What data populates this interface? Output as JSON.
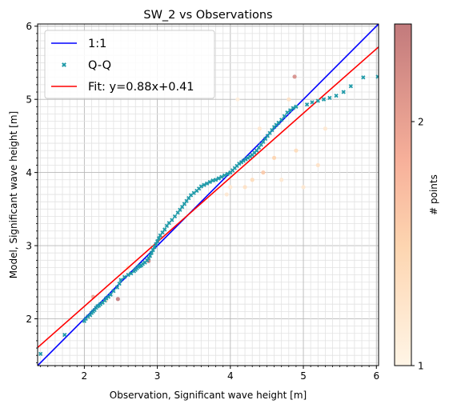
{
  "chart_data": {
    "type": "scatter",
    "title": "SW_2 vs Observations",
    "xlabel": "Observation, Significant wave height [m]",
    "ylabel": "Model, Significant wave height [m]",
    "xlim": [
      1.36,
      6.03
    ],
    "ylim": [
      1.36,
      6.03
    ],
    "x_ticks": [
      2,
      3,
      4,
      5,
      6
    ],
    "y_ticks": [
      2,
      3,
      4,
      5,
      6
    ],
    "x_tick_labels": [
      "2",
      "3",
      "4",
      "5",
      "6"
    ],
    "y_tick_labels": [
      "2",
      "3",
      "4",
      "5",
      "6"
    ],
    "grid": true,
    "legend_position": "top-left",
    "legend": {
      "one_to_one": "1:1",
      "qq": "Q-Q",
      "fit": "Fit: y=0.88x+0.41"
    },
    "colors": {
      "one_to_one": "#0000ff",
      "qq": "#1f9aa8",
      "fit": "#ff0000",
      "density_low": "#fff5e6",
      "density_high": "#c27a7c"
    },
    "fit_line": {
      "slope": 0.88,
      "intercept": 0.41
    },
    "colorbar": {
      "label": "# points",
      "ticks": [
        1,
        2
      ],
      "tick_labels": [
        "1",
        "2"
      ],
      "range": [
        1,
        2.4
      ]
    },
    "qq_points": [
      [
        1.4,
        1.52
      ],
      [
        1.73,
        1.78
      ],
      [
        2.0,
        1.97
      ],
      [
        2.02,
        2.0
      ],
      [
        2.05,
        2.03
      ],
      [
        2.08,
        2.05
      ],
      [
        2.1,
        2.08
      ],
      [
        2.12,
        2.1
      ],
      [
        2.14,
        2.12
      ],
      [
        2.16,
        2.15
      ],
      [
        2.18,
        2.17
      ],
      [
        2.2,
        2.18
      ],
      [
        2.22,
        2.2
      ],
      [
        2.25,
        2.22
      ],
      [
        2.28,
        2.25
      ],
      [
        2.3,
        2.28
      ],
      [
        2.33,
        2.3
      ],
      [
        2.36,
        2.33
      ],
      [
        2.4,
        2.38
      ],
      [
        2.45,
        2.43
      ],
      [
        2.48,
        2.48
      ],
      [
        2.5,
        2.53
      ],
      [
        2.55,
        2.57
      ],
      [
        2.6,
        2.6
      ],
      [
        2.64,
        2.62
      ],
      [
        2.68,
        2.65
      ],
      [
        2.7,
        2.67
      ],
      [
        2.72,
        2.69
      ],
      [
        2.74,
        2.71
      ],
      [
        2.76,
        2.72
      ],
      [
        2.78,
        2.73
      ],
      [
        2.8,
        2.75
      ],
      [
        2.83,
        2.77
      ],
      [
        2.86,
        2.8
      ],
      [
        2.88,
        2.83
      ],
      [
        2.9,
        2.86
      ],
      [
        2.92,
        2.9
      ],
      [
        2.94,
        2.94
      ],
      [
        2.96,
        2.98
      ],
      [
        2.98,
        3.02
      ],
      [
        3.0,
        3.06
      ],
      [
        3.02,
        3.1
      ],
      [
        3.04,
        3.14
      ],
      [
        3.07,
        3.18
      ],
      [
        3.1,
        3.22
      ],
      [
        3.13,
        3.27
      ],
      [
        3.16,
        3.31
      ],
      [
        3.2,
        3.35
      ],
      [
        3.24,
        3.4
      ],
      [
        3.28,
        3.45
      ],
      [
        3.31,
        3.49
      ],
      [
        3.34,
        3.53
      ],
      [
        3.37,
        3.57
      ],
      [
        3.4,
        3.61
      ],
      [
        3.43,
        3.65
      ],
      [
        3.46,
        3.69
      ],
      [
        3.5,
        3.72
      ],
      [
        3.54,
        3.75
      ],
      [
        3.57,
        3.78
      ],
      [
        3.6,
        3.81
      ],
      [
        3.64,
        3.83
      ],
      [
        3.68,
        3.85
      ],
      [
        3.72,
        3.87
      ],
      [
        3.76,
        3.89
      ],
      [
        3.8,
        3.9
      ],
      [
        3.84,
        3.92
      ],
      [
        3.88,
        3.94
      ],
      [
        3.92,
        3.96
      ],
      [
        3.96,
        3.98
      ],
      [
        4.0,
        4.0
      ],
      [
        4.03,
        4.03
      ],
      [
        4.06,
        4.06
      ],
      [
        4.09,
        4.09
      ],
      [
        4.12,
        4.12
      ],
      [
        4.15,
        4.14
      ],
      [
        4.18,
        4.16
      ],
      [
        4.21,
        4.18
      ],
      [
        4.24,
        4.2
      ],
      [
        4.27,
        4.22
      ],
      [
        4.3,
        4.24
      ],
      [
        4.33,
        4.27
      ],
      [
        4.36,
        4.3
      ],
      [
        4.39,
        4.34
      ],
      [
        4.42,
        4.38
      ],
      [
        4.45,
        4.42
      ],
      [
        4.48,
        4.46
      ],
      [
        4.51,
        4.5
      ],
      [
        4.54,
        4.54
      ],
      [
        4.57,
        4.58
      ],
      [
        4.6,
        4.62
      ],
      [
        4.63,
        4.65
      ],
      [
        4.66,
        4.68
      ],
      [
        4.7,
        4.72
      ],
      [
        4.74,
        4.77
      ],
      [
        4.78,
        4.82
      ],
      [
        4.82,
        4.85
      ],
      [
        4.86,
        4.88
      ],
      [
        4.9,
        4.9
      ],
      [
        5.05,
        4.93
      ],
      [
        5.12,
        4.96
      ],
      [
        5.2,
        4.98
      ],
      [
        5.28,
        5.0
      ],
      [
        5.36,
        5.02
      ],
      [
        5.45,
        5.05
      ],
      [
        5.55,
        5.1
      ],
      [
        5.65,
        5.18
      ],
      [
        5.82,
        5.3
      ],
      [
        6.02,
        5.31
      ]
    ],
    "density_points": [
      [
        2.12,
        2.3,
        2.0
      ],
      [
        2.46,
        2.27,
        2.4
      ],
      [
        2.88,
        2.79,
        2.3
      ],
      [
        4.88,
        5.31,
        2.2
      ],
      [
        4.45,
        4.0,
        1.6
      ],
      [
        4.3,
        3.9,
        1.4
      ],
      [
        4.2,
        3.8,
        1.3
      ],
      [
        4.6,
        4.2,
        1.5
      ],
      [
        5.0,
        3.8,
        1.2
      ],
      [
        5.2,
        4.1,
        1.3
      ],
      [
        4.9,
        4.3,
        1.4
      ],
      [
        4.7,
        3.9,
        1.2
      ],
      [
        5.3,
        4.6,
        1.2
      ],
      [
        4.0,
        3.8,
        1.2
      ],
      [
        2.6,
        2.7,
        1.3
      ],
      [
        2.3,
        2.25,
        1.3
      ],
      [
        4.8,
        5.0,
        1.3
      ],
      [
        4.1,
        5.0,
        1.1
      ],
      [
        4.4,
        4.6,
        1.2
      ],
      [
        3.95,
        3.7,
        1.2
      ]
    ]
  }
}
